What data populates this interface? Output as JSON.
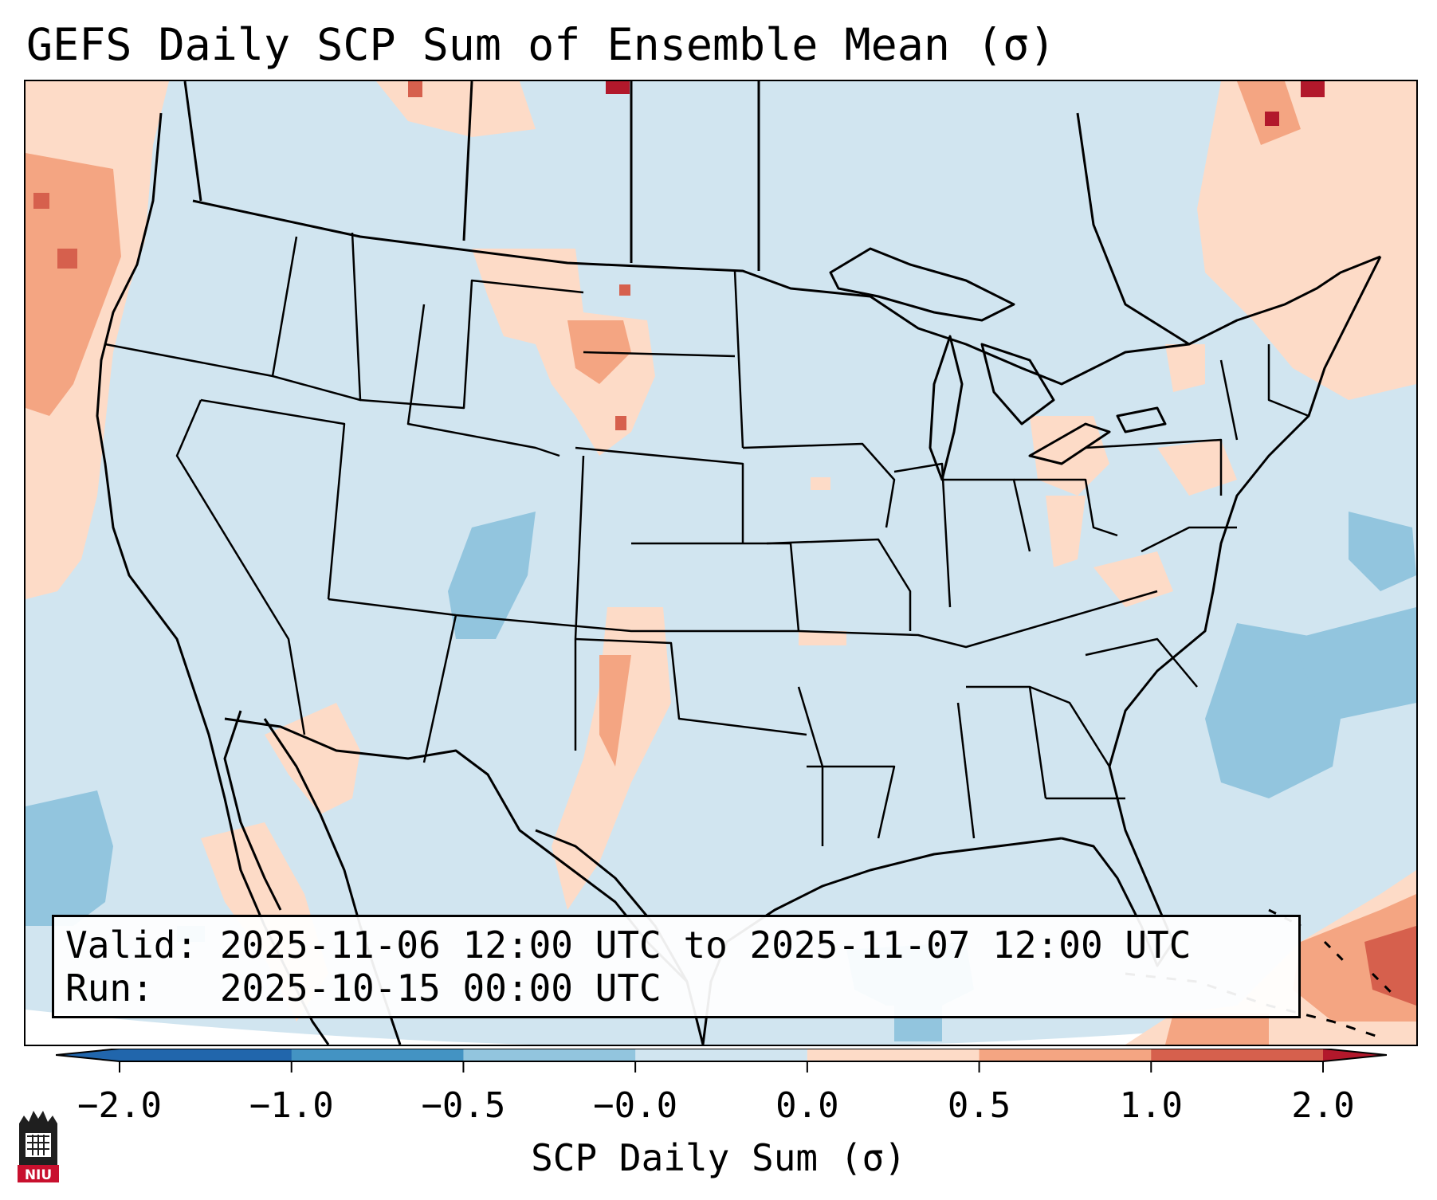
{
  "title": "GEFS Daily SCP Sum of Ensemble Mean (σ)",
  "info": {
    "valid_line": "Valid: 2025-11-06 12:00 UTC to 2025-11-07 12:00 UTC",
    "run_line": "Run:   2025-10-15 00:00 UTC"
  },
  "colorbar": {
    "label": "SCP Daily Sum (σ)",
    "ticks": [
      "−2.0",
      "−1.0",
      "−0.5",
      "−0.0",
      "0.0",
      "0.5",
      "1.0",
      "2.0"
    ],
    "colors": [
      "#2166ac",
      "#4393c3",
      "#92c5de",
      "#d1e5f0",
      "#fddbc7",
      "#f4a582",
      "#d6604d",
      "#b2182b"
    ]
  },
  "map": {
    "background_color": "#d1e5f0",
    "outside_color": "#ffffff",
    "line_color": "#000000"
  },
  "logo": {
    "text": "NIU",
    "color": "#c8102e"
  }
}
